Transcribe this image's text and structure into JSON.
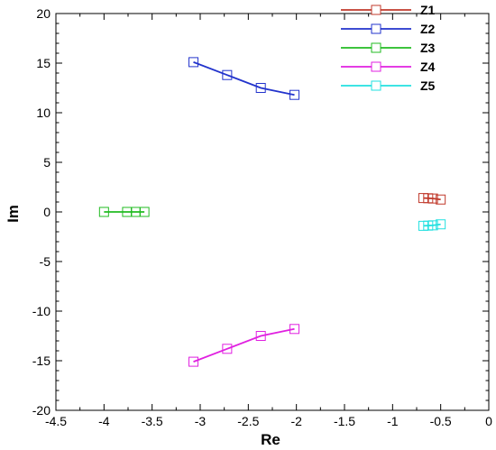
{
  "chart_data": {
    "type": "line",
    "xlabel": "Re",
    "ylabel": "Im",
    "xlim": [
      -4.5,
      0
    ],
    "ylim": [
      -20,
      20
    ],
    "xticks": [
      -4.5,
      -4,
      -3.5,
      -3,
      -2.5,
      -2,
      -1.5,
      -1,
      -0.5,
      0
    ],
    "yticks": [
      -20,
      -15,
      -10,
      -5,
      0,
      5,
      10,
      15,
      20
    ],
    "xtick_labels": [
      "-4.5",
      "-4",
      "-3.5",
      "-3",
      "-2.5",
      "-2",
      "-1.5",
      "-1",
      "-0.5",
      "0"
    ],
    "ytick_labels": [
      "-20",
      "-15",
      "-10",
      "-5",
      "0",
      "5",
      "10",
      "15",
      "20"
    ],
    "grid": false,
    "legend_position": "top-right",
    "marker": "open-square",
    "series": [
      {
        "name": "Z1",
        "color": "#c0392b",
        "x": [
          -0.68,
          -0.63,
          -0.58,
          -0.5
        ],
        "y": [
          1.4,
          1.38,
          1.35,
          1.25
        ]
      },
      {
        "name": "Z2",
        "color": "#2233cc",
        "x": [
          -3.07,
          -2.72,
          -2.37,
          -2.02
        ],
        "y": [
          15.1,
          13.8,
          12.5,
          11.8
        ]
      },
      {
        "name": "Z3",
        "color": "#22bb22",
        "x": [
          -4.0,
          -3.76,
          -3.67,
          -3.58
        ],
        "y": [
          0.0,
          0.0,
          0.0,
          0.0
        ]
      },
      {
        "name": "Z4",
        "color": "#e020e0",
        "x": [
          -3.07,
          -2.72,
          -2.37,
          -2.02
        ],
        "y": [
          -15.1,
          -13.8,
          -12.5,
          -11.8
        ]
      },
      {
        "name": "Z5",
        "color": "#22e0e0",
        "x": [
          -0.68,
          -0.63,
          -0.58,
          -0.5
        ],
        "y": [
          -1.4,
          -1.38,
          -1.35,
          -1.25
        ]
      }
    ]
  }
}
